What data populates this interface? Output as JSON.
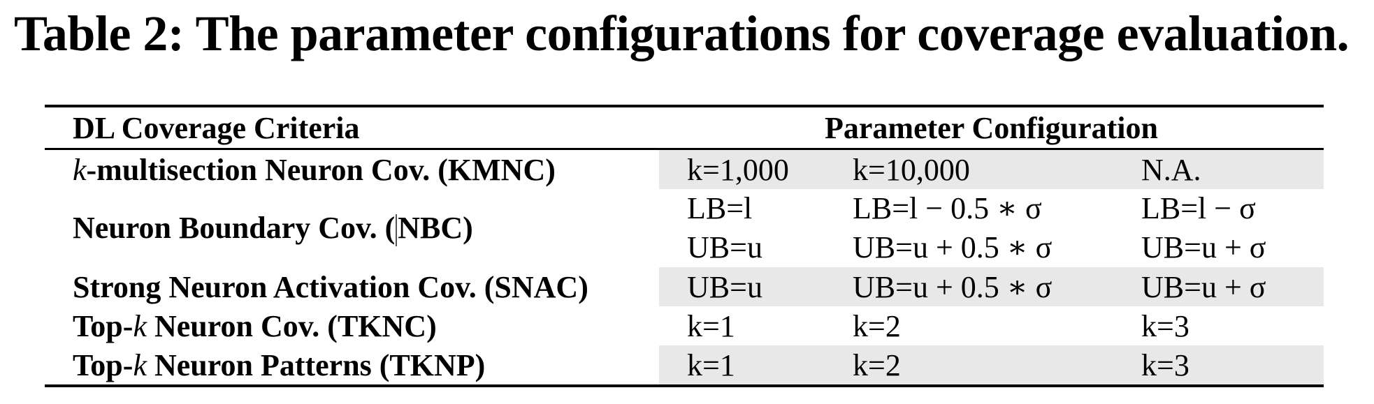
{
  "caption": "Table 2: The parameter configurations for coverage evaluation.",
  "table": {
    "headers": {
      "criteria": "DL Coverage Criteria",
      "config": "Parameter Configuration"
    },
    "rows": [
      {
        "criteria_prefix": "",
        "criteria_k": "k",
        "criteria_text": "-multisection Neuron Cov. (KMNC)",
        "values": [
          "k=1,000",
          "k=10,000",
          "N.A."
        ]
      },
      {
        "criteria_prefix": "Neuron Boundary Cov. (",
        "criteria_suffix": "NBC)",
        "values_top": [
          "LB=l",
          "LB=l − 0.5 ∗ σ",
          "LB=l − σ"
        ],
        "values_bottom": [
          "UB=u",
          "UB=u + 0.5 ∗ σ",
          "UB=u + σ"
        ]
      },
      {
        "criteria_text": "Strong Neuron Activation Cov. (SNAC)",
        "values": [
          "UB=u",
          "UB=u + 0.5 ∗ σ",
          "UB=u + σ"
        ]
      },
      {
        "criteria_prefix": "Top-",
        "criteria_k": "k",
        "criteria_text": " Neuron Cov. (TKNC)",
        "values": [
          "k=1",
          "k=2",
          "k=3"
        ]
      },
      {
        "criteria_prefix": "Top-",
        "criteria_k": "k",
        "criteria_text": " Neuron Patterns (TKNP)",
        "values": [
          "k=1",
          "k=2",
          "k=3"
        ]
      }
    ]
  }
}
